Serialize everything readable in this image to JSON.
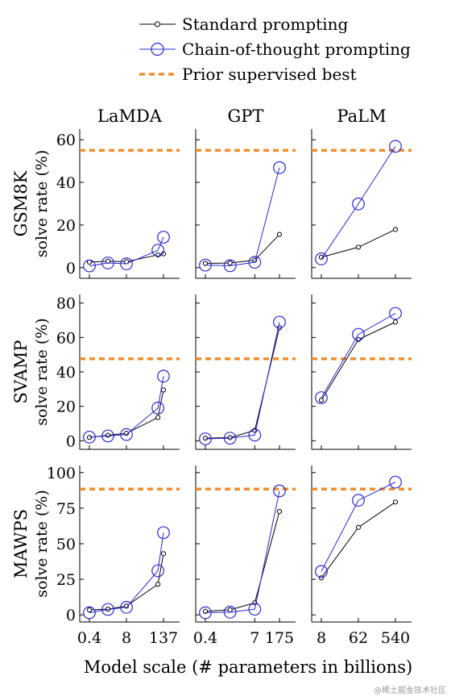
{
  "legend": {
    "standard": "Standard prompting",
    "cot": "Chain-of-thought prompting",
    "prior": "Prior supervised best"
  },
  "columns": [
    "LaMDA",
    "GPT",
    "PaLM"
  ],
  "rows": [
    "GSM8K",
    "SVAMP",
    "MAWPS"
  ],
  "y_axis_label": "solve rate (%)",
  "x_axis_label": "Model scale (# parameters in billions)",
  "colors": {
    "standard": "#000000",
    "cot": "#2a2ad0",
    "prior": "#ef8e2e"
  },
  "watermark": "@稀土掘金技术社区",
  "chart_data": {
    "type": "line",
    "grid": false,
    "x_ticks": {
      "LaMDA": {
        "labels": [
          "0.4",
          "8",
          "137"
        ],
        "positions": [
          0,
          2,
          4
        ]
      },
      "GPT": {
        "labels": [
          "0.4",
          "7",
          "175"
        ],
        "positions": [
          0,
          2,
          3
        ]
      },
      "PaLM": {
        "labels": [
          "8",
          "62",
          "540"
        ],
        "positions": [
          0,
          1,
          2
        ]
      }
    },
    "model_points": {
      "LaMDA": [
        0,
        1,
        2,
        3.7,
        4
      ],
      "GPT": [
        0,
        1,
        2,
        3
      ],
      "PaLM": [
        0,
        1,
        2
      ]
    },
    "row_axes": {
      "GSM8K": {
        "ylim": [
          -5,
          65
        ],
        "yticks": [
          0,
          20,
          40,
          60
        ],
        "prior_best": 55
      },
      "SVAMP": {
        "ylim": [
          -5,
          85
        ],
        "yticks": [
          0,
          20,
          40,
          60,
          80
        ],
        "prior_best": 47.6
      },
      "MAWPS": {
        "ylim": [
          -5,
          105
        ],
        "yticks": [
          0,
          25,
          50,
          75,
          100
        ],
        "prior_best": 88.4
      }
    },
    "panels": [
      {
        "row": "GSM8K",
        "col": "LaMDA",
        "series": [
          {
            "name": "Standard prompting",
            "values": [
              2.6,
              3.0,
              2.8,
              6.0,
              6.5
            ]
          },
          {
            "name": "Chain-of-thought prompting",
            "values": [
              0.8,
              2.2,
              1.8,
              8.2,
              14.3
            ]
          }
        ]
      },
      {
        "row": "GSM8K",
        "col": "GPT",
        "series": [
          {
            "name": "Standard prompting",
            "values": [
              2.0,
              2.2,
              3.5,
              15.6
            ]
          },
          {
            "name": "Chain-of-thought prompting",
            "values": [
              1.2,
              0.9,
              2.5,
              46.9
            ]
          }
        ]
      },
      {
        "row": "GSM8K",
        "col": "PaLM",
        "series": [
          {
            "name": "Standard prompting",
            "values": [
              4.9,
              9.6,
              17.9
            ]
          },
          {
            "name": "Chain-of-thought prompting",
            "values": [
              4.1,
              29.9,
              56.9
            ]
          }
        ]
      },
      {
        "row": "SVAMP",
        "col": "LaMDA",
        "series": [
          {
            "name": "Standard prompting",
            "values": [
              1.9,
              3.2,
              4.3,
              13.5,
              29.5
            ]
          },
          {
            "name": "Chain-of-thought prompting",
            "values": [
              2.1,
              2.8,
              3.6,
              19.0,
              37.5
            ]
          }
        ]
      },
      {
        "row": "SVAMP",
        "col": "GPT",
        "series": [
          {
            "name": "Standard prompting",
            "values": [
              1.5,
              1.8,
              6.0,
              65.7
            ]
          },
          {
            "name": "Chain-of-thought prompting",
            "values": [
              1.1,
              1.5,
              3.3,
              68.9
            ]
          }
        ]
      },
      {
        "row": "SVAMP",
        "col": "PaLM",
        "series": [
          {
            "name": "Standard prompting",
            "values": [
              23.5,
              58.8,
              69.0
            ]
          },
          {
            "name": "Chain-of-thought prompting",
            "values": [
              25.0,
              61.8,
              74.0
            ]
          }
        ]
      },
      {
        "row": "MAWPS",
        "col": "LaMDA",
        "series": [
          {
            "name": "Standard prompting",
            "values": [
              3.5,
              4.0,
              6.2,
              21.5,
              43.0
            ]
          },
          {
            "name": "Chain-of-thought prompting",
            "values": [
              1.5,
              3.8,
              5.3,
              31.0,
              57.8
            ]
          }
        ]
      },
      {
        "row": "MAWPS",
        "col": "GPT",
        "series": [
          {
            "name": "Standard prompting",
            "values": [
              2.5,
              3.5,
              8.5,
              72.7
            ]
          },
          {
            "name": "Chain-of-thought prompting",
            "values": [
              1.5,
              1.9,
              4.0,
              87.1
            ]
          }
        ]
      },
      {
        "row": "MAWPS",
        "col": "PaLM",
        "series": [
          {
            "name": "Standard prompting",
            "values": [
              26.0,
              61.5,
              79.3
            ]
          },
          {
            "name": "Chain-of-thought prompting",
            "values": [
              30.5,
              80.5,
              93.3
            ]
          }
        ]
      }
    ]
  }
}
